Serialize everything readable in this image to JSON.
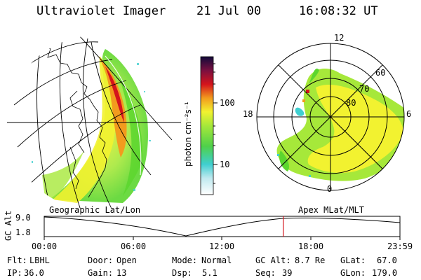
{
  "header": {
    "instrument": "Ultraviolet Imager",
    "date": "21 Jul 00",
    "time": "16:08:32 UT"
  },
  "colorbar": {
    "label": "photon cm⁻²s⁻¹",
    "ticks": [
      "100",
      "10"
    ]
  },
  "polar_plot": {
    "mlt_labels": [
      "12",
      "18",
      "6",
      "0"
    ],
    "lat_labels": [
      "60",
      "70",
      "80"
    ]
  },
  "panel_labels": {
    "left": "Geographic Lat/Lon",
    "right": "Apex MLat/MLT"
  },
  "altitude_plot": {
    "ylabel": "GC Alt",
    "yticks": [
      "9.0",
      "1.8"
    ],
    "xticks": [
      "00:00",
      "06:00",
      "12:00",
      "18:00",
      "23:59"
    ],
    "current_time_fraction": 0.672
  },
  "info": {
    "row1": [
      {
        "label": "Flt:",
        "value": "LBHL"
      },
      {
        "label": "Door:",
        "value": "Open"
      },
      {
        "label": "Mode:",
        "value": "Normal"
      },
      {
        "label": "GC Alt:",
        "value": "8.7 Re"
      },
      {
        "label": "GLat:",
        "value": "67.0"
      }
    ],
    "row2": [
      {
        "label": "IP:",
        "value": "36.0"
      },
      {
        "label": "Gain:",
        "value": "13"
      },
      {
        "label": "Dsp:",
        "value": "5.1"
      },
      {
        "label": "Seq:",
        "value": "39"
      },
      {
        "label": "GLon:",
        "value": "179.0"
      }
    ]
  },
  "colors": {
    "green": "#5cd62e",
    "lightgreen": "#a6e83a",
    "yellow": "#f2f230",
    "orange": "#f29b1e",
    "red": "#d4141c",
    "cyan": "#3fcfd0"
  }
}
